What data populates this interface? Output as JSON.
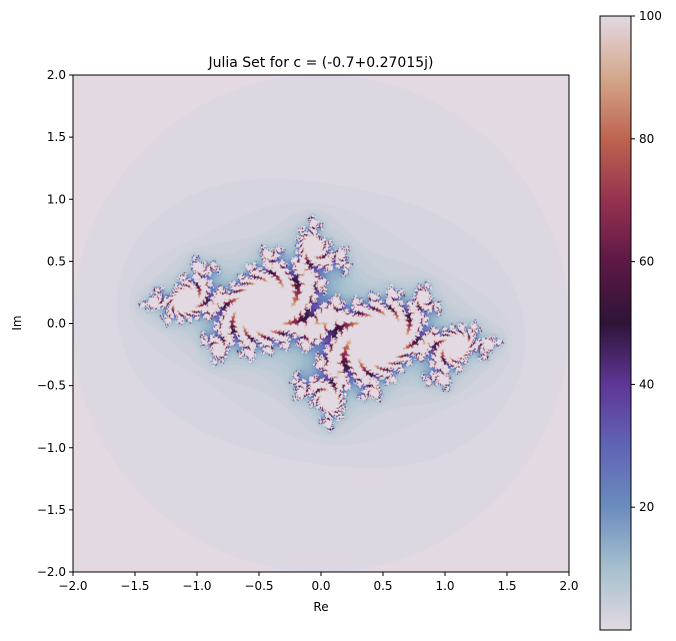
{
  "chart_data": {
    "type": "heatmap",
    "title": "Julia Set for c = (-0.7+0.27015j)",
    "xlabel": "Re",
    "ylabel": "Im",
    "xlim": [
      -2.0,
      2.0
    ],
    "ylim": [
      -2.0,
      2.0
    ],
    "c": {
      "re": -0.7,
      "im": 0.27015
    },
    "max_iter": 100,
    "colormap": "twilight",
    "grid": false,
    "x_ticks": [
      "−2.0",
      "−1.5",
      "−1.0",
      "−0.5",
      "0.0",
      "0.5",
      "1.0",
      "1.5",
      "2.0"
    ],
    "y_ticks": [
      "−2.0",
      "−1.5",
      "−1.0",
      "−0.5",
      "0.0",
      "0.5",
      "1.0",
      "1.5",
      "2.0"
    ],
    "colorbar": {
      "range": [
        0,
        100
      ],
      "ticks": [
        "20",
        "40",
        "60",
        "80",
        "100"
      ]
    }
  }
}
